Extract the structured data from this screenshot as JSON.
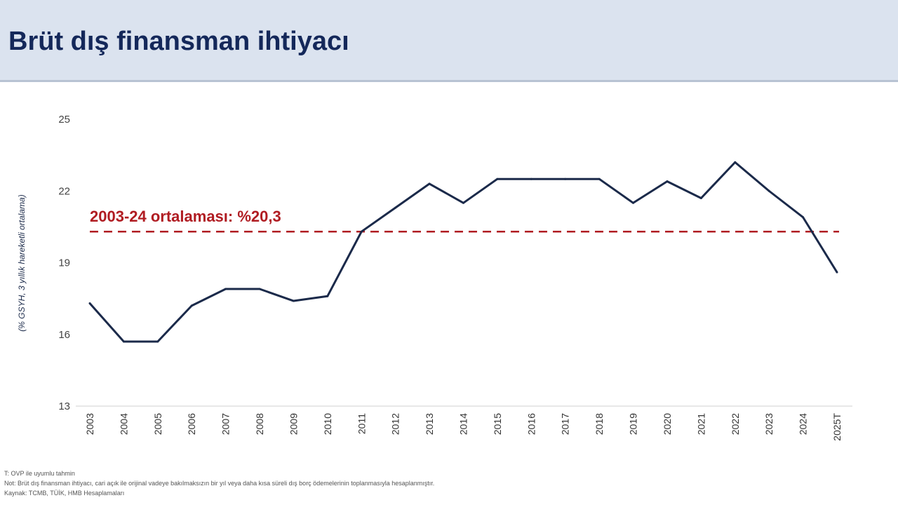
{
  "header": {
    "title": "Brüt dış finansman ihtiyacı"
  },
  "chart_data": {
    "type": "line",
    "title": "",
    "ylabel": "(% GSYH, 3 yıllık hareketli ortalama)",
    "xlabel": "",
    "ylim": [
      13,
      25
    ],
    "yticks": [
      13,
      16,
      19,
      22,
      25
    ],
    "categories": [
      "2003",
      "2004",
      "2005",
      "2006",
      "2007",
      "2008",
      "2009",
      "2010",
      "2011",
      "2012",
      "2013",
      "2014",
      "2015",
      "2016",
      "2017",
      "2018",
      "2019",
      "2020",
      "2021",
      "2022",
      "2023",
      "2024",
      "2025T"
    ],
    "series": [
      {
        "values": [
          17.3,
          15.7,
          15.7,
          17.2,
          17.9,
          17.9,
          17.4,
          17.6,
          20.3,
          21.3,
          22.3,
          21.5,
          22.5,
          22.5,
          22.5,
          22.5,
          21.5,
          22.4,
          21.7,
          23.2,
          22.0,
          20.9,
          18.6
        ],
        "color": "#1b2a4a"
      }
    ],
    "reference_line": {
      "value": 20.3,
      "label": "2003-24 ortalaması: %20,3",
      "color": "#b01c22",
      "style": "dashed"
    },
    "grid": false,
    "legend": "none"
  },
  "notes": {
    "line1": "T: OVP ile uyumlu tahmin",
    "line2": "Not: Brüt dış finansman ihtiyacı, cari açık ile orijinal vadeye bakılmaksızın bir yıl veya daha kısa süreli dış borç ödemelerinin toplanmasıyla hesaplanmıştır.",
    "line3": "Kaynak: TCMB, TÜİK, HMB Hesaplamaları"
  }
}
